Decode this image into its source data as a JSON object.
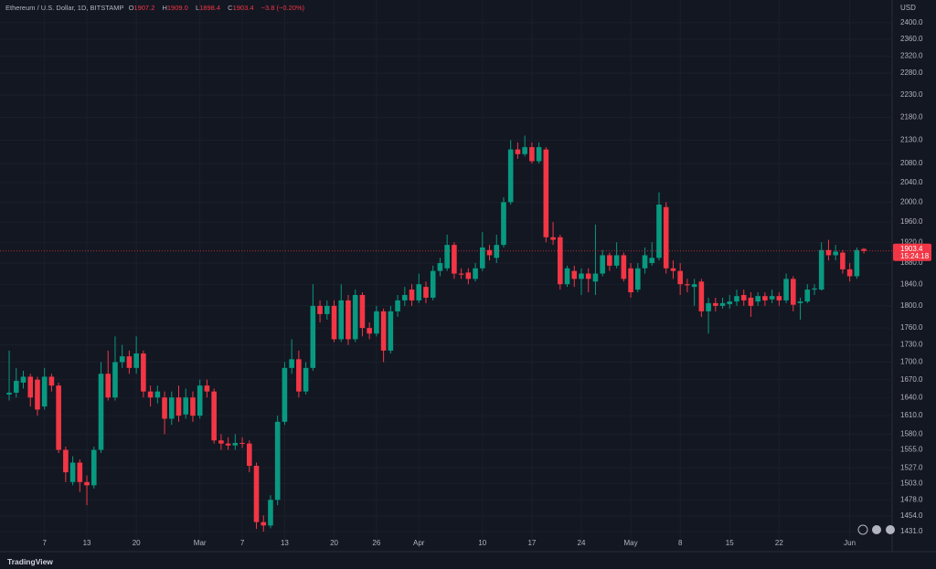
{
  "chart_data": {
    "type": "candlestick",
    "header": {
      "symbol": "Ethereum / U.S. Dollar, 1D, BITSTAMP",
      "open_label": "O",
      "open": "1907.2",
      "high_label": "H",
      "high": "1909.0",
      "low_label": "L",
      "low": "1898.4",
      "close_label": "C",
      "close": "1903.4",
      "change": "−3.8 (−0.20%)"
    },
    "y_axis_unit": "USD",
    "last_price_label": "1903.4",
    "countdown": "15:24:18",
    "brand": "TradingView",
    "up_color": "#089981",
    "down_color": "#f23645",
    "log_scale": true,
    "grid": true,
    "ylim": [
      1414,
      2456
    ],
    "xlim": [
      -1.3,
      125
    ],
    "yticks": [
      {
        "value": 2400,
        "label": "2400.0"
      },
      {
        "value": 2360,
        "label": "2360.0"
      },
      {
        "value": 2320,
        "label": "2320.0"
      },
      {
        "value": 2280,
        "label": "2280.0"
      },
      {
        "value": 2230,
        "label": "2230.0"
      },
      {
        "value": 2180,
        "label": "2180.0"
      },
      {
        "value": 2130,
        "label": "2130.0"
      },
      {
        "value": 2080,
        "label": "2080.0"
      },
      {
        "value": 2040,
        "label": "2040.0"
      },
      {
        "value": 2000,
        "label": "2000.0"
      },
      {
        "value": 1960,
        "label": "1960.0"
      },
      {
        "value": 1920,
        "label": "1920.0"
      },
      {
        "value": 1880,
        "label": "1880.0"
      },
      {
        "value": 1840,
        "label": "1840.0"
      },
      {
        "value": 1800,
        "label": "1800.0"
      },
      {
        "value": 1760,
        "label": "1760.0"
      },
      {
        "value": 1730,
        "label": "1730.0"
      },
      {
        "value": 1700,
        "label": "1700.0"
      },
      {
        "value": 1670,
        "label": "1670.0"
      },
      {
        "value": 1640,
        "label": "1640.0"
      },
      {
        "value": 1610,
        "label": "1610.0"
      },
      {
        "value": 1580,
        "label": "1580.0"
      },
      {
        "value": 1555,
        "label": "1555.0"
      },
      {
        "value": 1527,
        "label": "1527.0"
      },
      {
        "value": 1503,
        "label": "1503.0"
      },
      {
        "value": 1478,
        "label": "1478.0"
      },
      {
        "value": 1454,
        "label": "1454.0"
      },
      {
        "value": 1431,
        "label": "1431.0"
      }
    ],
    "xticks": [
      {
        "value": 5,
        "label": "7"
      },
      {
        "value": 11,
        "label": "13"
      },
      {
        "value": 18,
        "label": "20"
      },
      {
        "value": 27,
        "label": "Mar"
      },
      {
        "value": 33,
        "label": "7"
      },
      {
        "value": 39,
        "label": "13"
      },
      {
        "value": 46,
        "label": "20"
      },
      {
        "value": 52,
        "label": "26"
      },
      {
        "value": 58,
        "label": "Apr"
      },
      {
        "value": 67,
        "label": "10"
      },
      {
        "value": 74,
        "label": "17"
      },
      {
        "value": 81,
        "label": "24"
      },
      {
        "value": 88,
        "label": "May"
      },
      {
        "value": 95,
        "label": "8"
      },
      {
        "value": 102,
        "label": "15"
      },
      {
        "value": 109,
        "label": "22"
      },
      {
        "value": 119,
        "label": "Jun"
      }
    ],
    "open": [
      1645,
      1648,
      1665,
      1675,
      1670,
      1625,
      1675,
      1660,
      1555,
      1505,
      1535,
      1505,
      1500,
      1555,
      1680,
      1640,
      1700,
      1710,
      1690,
      1715,
      1650,
      1640,
      1640,
      1605,
      1640,
      1612,
      1640,
      1610,
      1660,
      1650,
      1570,
      1565,
      1562,
      1566,
      1565,
      1530,
      1445,
      1440,
      1478,
      1600,
      1690,
      1705,
      1650,
      1690,
      1800,
      1785,
      1800,
      1740,
      1810,
      1740,
      1820,
      1760,
      1750,
      1790,
      1720,
      1790,
      1810,
      1830,
      1810,
      1835,
      1815,
      1865,
      1870,
      1915,
      1860,
      1862,
      1850,
      1870,
      1905,
      1890,
      1915,
      2000,
      2110,
      2100,
      2115,
      2085,
      2110,
      1930,
      1930,
      1840,
      1865,
      1850,
      1860,
      1845,
      1860,
      1895,
      1875,
      1895,
      1870,
      1830,
      1870,
      1880,
      1890,
      1990,
      1870,
      1865,
      1840,
      1835,
      1845,
      1790,
      1805,
      1800,
      1803,
      1808,
      1820,
      1815,
      1808,
      1818,
      1812,
      1818,
      1810,
      1850,
      1805,
      1808,
      1830,
      1830,
      1905,
      1895,
      1900,
      1868,
      1855,
      1907.2
    ],
    "high": [
      1720,
      1690,
      1685,
      1680,
      1675,
      1690,
      1680,
      1665,
      1560,
      1545,
      1540,
      1515,
      1560,
      1700,
      1720,
      1745,
      1730,
      1720,
      1745,
      1720,
      1660,
      1660,
      1650,
      1650,
      1660,
      1655,
      1650,
      1670,
      1670,
      1655,
      1580,
      1575,
      1580,
      1575,
      1570,
      1535,
      1455,
      1485,
      1610,
      1700,
      1740,
      1720,
      1700,
      1840,
      1810,
      1810,
      1810,
      1840,
      1820,
      1830,
      1825,
      1770,
      1800,
      1795,
      1800,
      1820,
      1835,
      1840,
      1860,
      1845,
      1875,
      1890,
      1935,
      1920,
      1870,
      1870,
      1880,
      1940,
      1915,
      1935,
      2010,
      2130,
      2125,
      2140,
      2125,
      2125,
      2115,
      1960,
      1935,
      1875,
      1875,
      1870,
      1870,
      1955,
      1905,
      1900,
      1920,
      1900,
      1880,
      1880,
      1910,
      1920,
      2020,
      2000,
      1885,
      1880,
      1850,
      1850,
      1850,
      1815,
      1815,
      1815,
      1820,
      1830,
      1830,
      1825,
      1825,
      1825,
      1830,
      1825,
      1860,
      1855,
      1815,
      1840,
      1840,
      1920,
      1925,
      1915,
      1905,
      1880,
      1910,
      1909.0
    ],
    "low": [
      1635,
      1640,
      1655,
      1625,
      1610,
      1620,
      1650,
      1550,
      1505,
      1500,
      1490,
      1470,
      1495,
      1550,
      1635,
      1635,
      1690,
      1680,
      1680,
      1640,
      1625,
      1630,
      1580,
      1595,
      1600,
      1605,
      1600,
      1605,
      1640,
      1565,
      1555,
      1555,
      1555,
      1558,
      1520,
      1435,
      1431,
      1436,
      1470,
      1595,
      1680,
      1640,
      1645,
      1685,
      1770,
      1775,
      1735,
      1735,
      1730,
      1735,
      1745,
      1740,
      1745,
      1700,
      1715,
      1780,
      1800,
      1800,
      1805,
      1805,
      1810,
      1855,
      1865,
      1850,
      1850,
      1840,
      1845,
      1865,
      1885,
      1880,
      1910,
      1995,
      2090,
      2095,
      2080,
      2080,
      1920,
      1915,
      1830,
      1835,
      1835,
      1820,
      1825,
      1820,
      1855,
      1865,
      1870,
      1845,
      1815,
      1825,
      1860,
      1875,
      1885,
      1860,
      1850,
      1820,
      1825,
      1800,
      1780,
      1750,
      1790,
      1795,
      1795,
      1800,
      1800,
      1780,
      1800,
      1800,
      1805,
      1800,
      1805,
      1790,
      1775,
      1805,
      1820,
      1828,
      1885,
      1885,
      1860,
      1845,
      1850,
      1898.4
    ],
    "close": [
      1648,
      1668,
      1675,
      1640,
      1620,
      1675,
      1660,
      1555,
      1520,
      1535,
      1505,
      1500,
      1555,
      1680,
      1640,
      1700,
      1710,
      1690,
      1715,
      1650,
      1640,
      1650,
      1605,
      1640,
      1610,
      1640,
      1610,
      1660,
      1650,
      1570,
      1565,
      1562,
      1566,
      1565,
      1530,
      1445,
      1440,
      1478,
      1600,
      1690,
      1705,
      1650,
      1690,
      1800,
      1785,
      1800,
      1740,
      1810,
      1740,
      1820,
      1760,
      1750,
      1790,
      1720,
      1790,
      1810,
      1820,
      1810,
      1840,
      1815,
      1865,
      1880,
      1915,
      1860,
      1858,
      1850,
      1870,
      1910,
      1895,
      1915,
      2000,
      2110,
      2100,
      2115,
      2085,
      2115,
      1930,
      1925,
      1840,
      1870,
      1850,
      1860,
      1850,
      1860,
      1895,
      1875,
      1895,
      1850,
      1825,
      1870,
      1895,
      1890,
      1995,
      1870,
      1865,
      1840,
      1838,
      1840,
      1790,
      1805,
      1800,
      1805,
      1808,
      1818,
      1810,
      1800,
      1818,
      1810,
      1818,
      1810,
      1850,
      1802,
      1808,
      1830,
      1832,
      1905,
      1895,
      1902,
      1868,
      1855,
      1905,
      1903.4
    ]
  }
}
